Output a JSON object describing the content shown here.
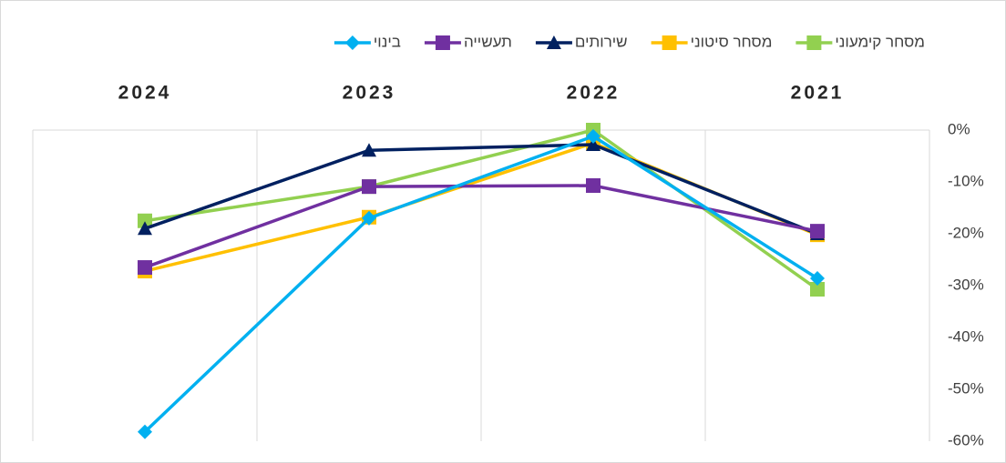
{
  "chart_data": {
    "type": "line",
    "categories": [
      "2024",
      "2023",
      "2022",
      "2021"
    ],
    "series": [
      {
        "name": "מסחר קימעוני",
        "color": "#92d050",
        "marker": "square",
        "values": [
          -17.5,
          -10.9,
          0,
          -30.7
        ]
      },
      {
        "name": "מסחר סיטוני",
        "color": "#ffc000",
        "marker": "square",
        "values": [
          -27.2,
          -16.8,
          -2.5,
          -20.2
        ]
      },
      {
        "name": "שירותים",
        "color": "#002060",
        "marker": "triangle",
        "values": [
          -19,
          -3.9,
          -2.8,
          -20
        ]
      },
      {
        "name": "תעשייה",
        "color": "#7030a0",
        "marker": "square",
        "values": [
          -26.5,
          -10.9,
          -10.7,
          -19.5
        ]
      },
      {
        "name": "בינוי",
        "color": "#00b0f0",
        "marker": "diamond",
        "values": [
          -58.2,
          -17,
          -1.2,
          -28.6
        ]
      }
    ],
    "ylim": [
      -60,
      0
    ],
    "yticks": [
      {
        "value": 0,
        "label": "0%"
      },
      {
        "value": -10,
        "label": "-10%"
      },
      {
        "value": -20,
        "label": "-20%"
      },
      {
        "value": -30,
        "label": "-30%"
      },
      {
        "value": -40,
        "label": "-40%"
      },
      {
        "value": -50,
        "label": "-50%"
      },
      {
        "value": -60,
        "label": "-60%"
      }
    ],
    "legend": "top"
  }
}
